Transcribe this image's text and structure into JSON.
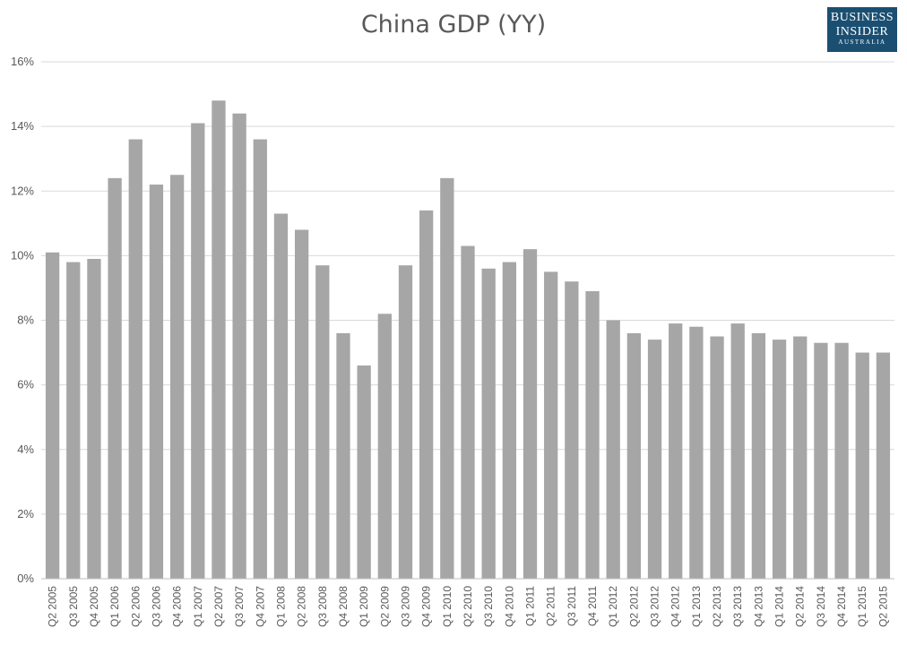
{
  "chart_data": {
    "type": "bar",
    "title": "China GDP (YY)",
    "xlabel": "",
    "ylabel": "",
    "ylim": [
      0,
      16
    ],
    "yticks": [
      "0%",
      "2%",
      "4%",
      "6%",
      "8%",
      "10%",
      "12%",
      "14%",
      "16%"
    ],
    "grid": true,
    "bar_color": "#a6a6a6",
    "categories": [
      "Q2 2005",
      "Q3 2005",
      "Q4 2005",
      "Q1 2006",
      "Q2 2006",
      "Q3 2006",
      "Q4 2006",
      "Q1 2007",
      "Q2 2007",
      "Q3 2007",
      "Q4 2007",
      "Q1 2008",
      "Q2 2008",
      "Q3 2008",
      "Q4 2008",
      "Q1 2009",
      "Q2 2009",
      "Q3 2009",
      "Q4 2009",
      "Q1 2010",
      "Q2 2010",
      "Q3 2010",
      "Q4 2010",
      "Q1 2011",
      "Q2 2011",
      "Q3 2011",
      "Q4 2011",
      "Q1 2012",
      "Q2 2012",
      "Q3 2012",
      "Q4 2012",
      "Q1 2013",
      "Q2 2013",
      "Q3 2013",
      "Q4 2013",
      "Q1 2014",
      "Q2 2014",
      "Q3 2014",
      "Q4 2014",
      "Q1 2015",
      "Q2 2015"
    ],
    "values": [
      10.1,
      9.8,
      9.9,
      12.4,
      13.6,
      12.2,
      12.5,
      14.1,
      14.8,
      14.4,
      13.6,
      11.3,
      10.8,
      9.7,
      7.6,
      6.6,
      8.2,
      9.7,
      11.4,
      12.4,
      10.3,
      9.6,
      9.8,
      10.2,
      9.5,
      9.2,
      8.9,
      8.0,
      7.6,
      7.4,
      7.9,
      7.8,
      7.5,
      7.9,
      7.6,
      7.4,
      7.5,
      7.3,
      7.3,
      7.0,
      7.0
    ]
  },
  "logo": {
    "line1": "BUSINESS",
    "line2": "INSIDER",
    "line3": "AUSTRALIA",
    "color": "#1b4f72"
  }
}
